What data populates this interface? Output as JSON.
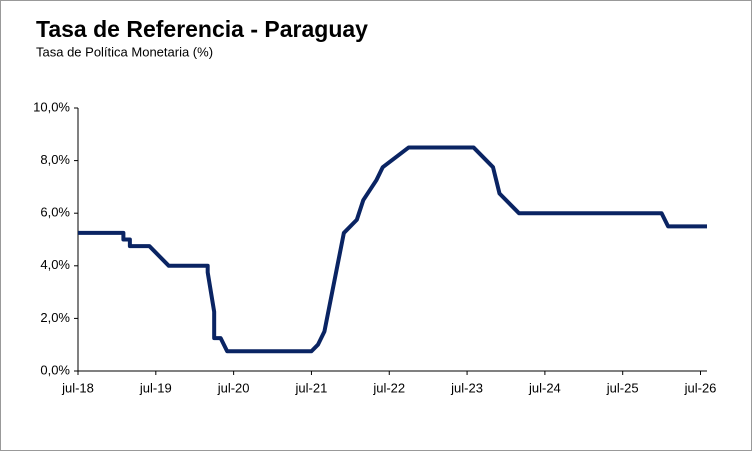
{
  "chart_data": {
    "type": "line",
    "title": "Tasa de Referencia - Paraguay",
    "subtitle": "Tasa de Política Monetaria (%)",
    "x": [
      "2018-07",
      "2019-02",
      "2019-02",
      "2019-03",
      "2019-03",
      "2019-06",
      "2019-09",
      "2020-03",
      "2020-03",
      "2020-04",
      "2020-04",
      "2020-05",
      "2020-06",
      "2021-07",
      "2021-08",
      "2021-09",
      "2021-10",
      "2021-11",
      "2021-12",
      "2022-02",
      "2022-03",
      "2022-05",
      "2022-06",
      "2022-10",
      "2023-08",
      "2023-11",
      "2023-12",
      "2024-03",
      "2026-01",
      "2026-02",
      "2026-08"
    ],
    "series": [
      {
        "color": "#0a2463",
        "values": [
          5.25,
          5.25,
          5.0,
          5.0,
          4.75,
          4.75,
          4.0,
          4.0,
          3.75,
          2.25,
          1.25,
          1.25,
          0.75,
          0.75,
          1.0,
          1.5,
          2.75,
          4.0,
          5.25,
          5.75,
          6.5,
          7.25,
          7.75,
          8.5,
          8.5,
          7.75,
          6.75,
          6.0,
          6.0,
          5.5,
          5.5
        ]
      }
    ],
    "xlim": [
      "2018-07",
      "2026-08"
    ],
    "xticks": [
      {
        "value": "2018-07",
        "label": "jul-18"
      },
      {
        "value": "2019-07",
        "label": "jul-19"
      },
      {
        "value": "2020-07",
        "label": "jul-20"
      },
      {
        "value": "2021-07",
        "label": "jul-21"
      },
      {
        "value": "2022-07",
        "label": "jul-22"
      },
      {
        "value": "2023-07",
        "label": "jul-23"
      },
      {
        "value": "2024-07",
        "label": "jul-24"
      },
      {
        "value": "2025-07",
        "label": "jul-25"
      },
      {
        "value": "2026-07",
        "label": "jul-26"
      }
    ],
    "ylim": [
      0,
      10
    ],
    "yticks": [
      {
        "value": 0,
        "label": "0,0%"
      },
      {
        "value": 2,
        "label": "2,0%"
      },
      {
        "value": 4,
        "label": "4,0%"
      },
      {
        "value": 6,
        "label": "6,0%"
      },
      {
        "value": 8,
        "label": "8,0%"
      },
      {
        "value": 10,
        "label": "10,0%"
      }
    ],
    "grid": false
  }
}
